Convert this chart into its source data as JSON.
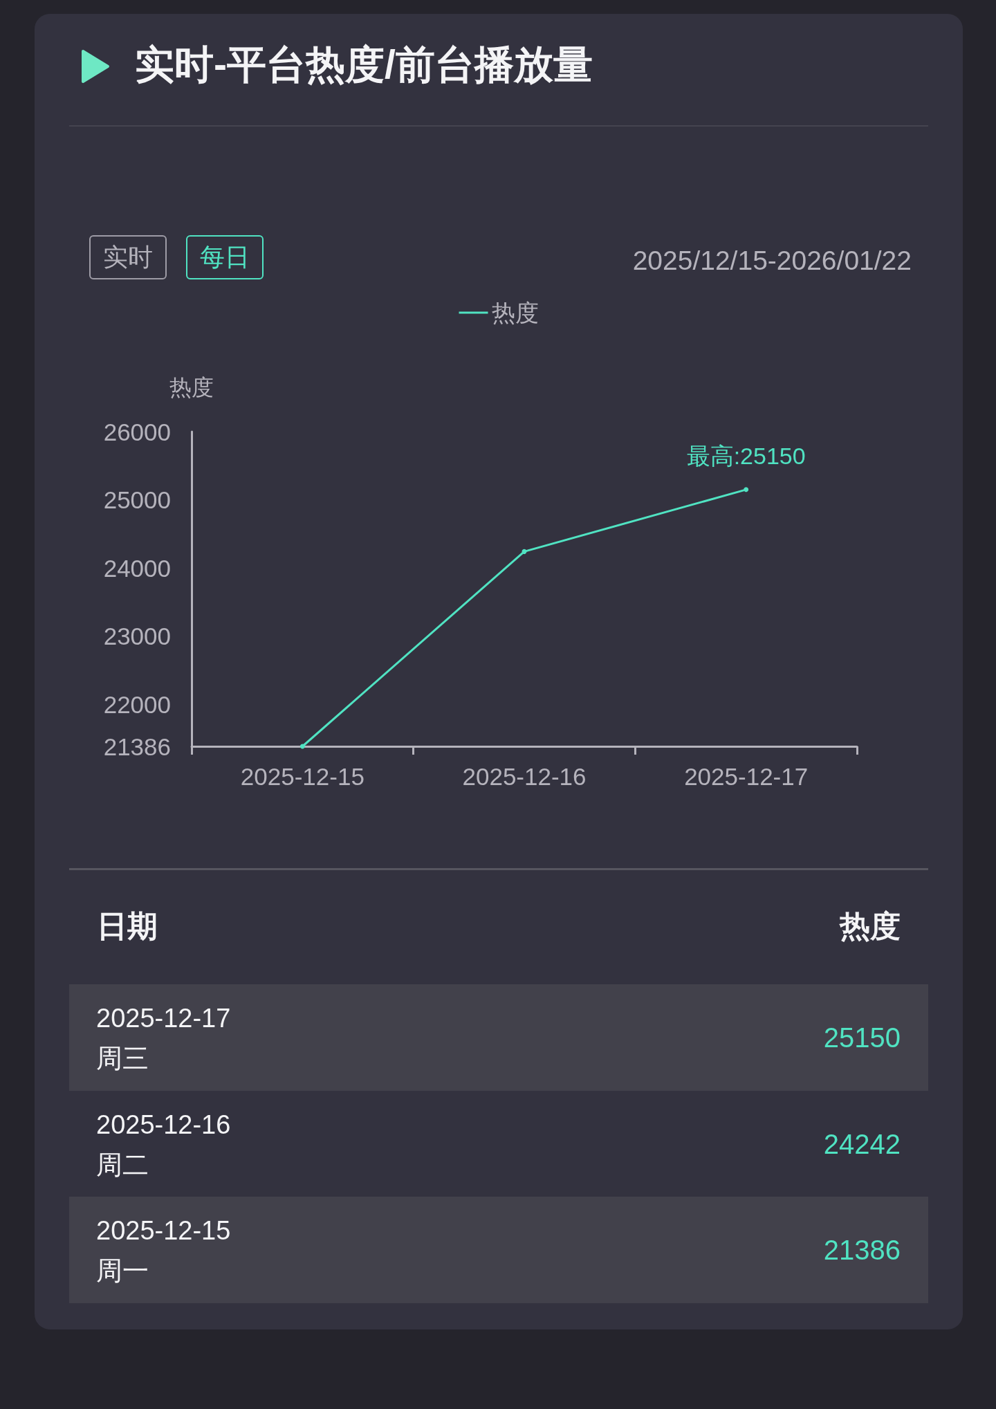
{
  "chart_data": {
    "type": "line",
    "title": "实时-平台热度/前台播放量",
    "subtitle": "2025/12/15-2026/01/22",
    "ylabel": "热度",
    "categories": [
      "2025-12-15",
      "2025-12-16",
      "2025-12-17"
    ],
    "series": [
      {
        "name": "热度",
        "color": "#50e3c2",
        "values": [
          21386,
          24242,
          25150
        ]
      }
    ],
    "ylim": [
      21386,
      26000
    ],
    "yticks": [
      21386,
      22000,
      23000,
      24000,
      25000,
      26000
    ],
    "grid": false,
    "legend": "top",
    "marker": "circle",
    "line_style": "solid",
    "annotations": [
      "实时",
      "每日",
      "日期",
      "热度",
      "2025-12-17",
      "周三",
      "25150",
      "2025-12-16",
      "周二",
      "24242",
      "2025-12-15",
      "周一",
      "21386",
      {
        "text": "最高:25150",
        "x": "2025-12-17",
        "y": 25150
      }
    ]
  }
}
